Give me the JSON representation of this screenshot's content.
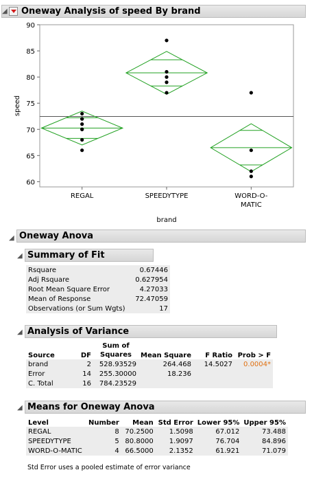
{
  "report_title": "Oneway Analysis of speed By brand",
  "chart_data": {
    "type": "scatter",
    "xlabel": "brand",
    "ylabel": "speed",
    "ylim": [
      59,
      90
    ],
    "yticks": [
      "90",
      "85",
      "80",
      "75",
      "70",
      "65",
      "60"
    ],
    "categories": [
      "REGAL",
      "SPEEDYTYPE",
      "WORD-O-MATIC"
    ],
    "category_labels": [
      [
        "REGAL"
      ],
      [
        "SPEEDYTYPE"
      ],
      [
        "WORD-O-",
        "MATIC"
      ]
    ],
    "grand_mean": 72.47059,
    "points": {
      "REGAL": [
        73,
        72,
        71,
        70,
        68,
        66,
        72,
        70
      ],
      "SPEEDYTYPE": [
        87,
        81,
        80,
        79,
        77
      ],
      "WORD-O-MATIC": [
        77,
        66,
        62,
        61
      ]
    },
    "means": [
      70.25,
      80.8,
      66.5
    ],
    "lower95": [
      67.012,
      76.704,
      61.921
    ],
    "upper95": [
      73.488,
      84.896,
      71.079
    ],
    "overlap_lower": [
      68.28,
      78.3,
      63.2
    ],
    "overlap_upper": [
      72.22,
      83.3,
      69.8
    ],
    "diamond_color": "#20a020"
  },
  "oneway_anova": {
    "title": "Oneway Anova",
    "summary_title": "Summary of Fit",
    "summary_rows": [
      {
        "label": "Rsquare",
        "value": "0.67446"
      },
      {
        "label": "Adj Rsquare",
        "value": "0.627954"
      },
      {
        "label": "Root Mean Square Error",
        "value": "4.27033"
      },
      {
        "label": "Mean of Response",
        "value": "72.47059"
      },
      {
        "label": "Observations (or Sum Wgts)",
        "value": "17"
      }
    ],
    "aov_title": "Analysis of Variance",
    "aov_headers": {
      "source": "Source",
      "df": "DF",
      "ss_top": "Sum of",
      "ss_bottom": "Squares",
      "ms": "Mean Square",
      "f": "F Ratio",
      "p": "Prob > F"
    },
    "aov_rows": [
      {
        "source": "brand",
        "df": "2",
        "ss": "528.93529",
        "ms": "264.468",
        "f": "14.5027",
        "p": "0.0004*"
      },
      {
        "source": "Error",
        "df": "14",
        "ss": "255.30000",
        "ms": "18.236",
        "f": "",
        "p": ""
      },
      {
        "source": "C. Total",
        "df": "16",
        "ss": "784.23529",
        "ms": "",
        "f": "",
        "p": ""
      }
    ],
    "p_color": "#e07010",
    "means_title": "Means for Oneway Anova",
    "means_headers": {
      "level": "Level",
      "number": "Number",
      "mean": "Mean",
      "se": "Std Error",
      "lower": "Lower 95%",
      "upper": "Upper 95%"
    },
    "means_rows": [
      {
        "level": "REGAL",
        "number": "8",
        "mean": "70.2500",
        "se": "1.5098",
        "lower": "67.012",
        "upper": "73.488"
      },
      {
        "level": "SPEEDYTYPE",
        "number": "5",
        "mean": "80.8000",
        "se": "1.9097",
        "lower": "76.704",
        "upper": "84.896"
      },
      {
        "level": "WORD-O-MATIC",
        "number": "4",
        "mean": "66.5000",
        "se": "2.1352",
        "lower": "61.921",
        "upper": "71.079"
      }
    ],
    "footnote": "Std Error uses a pooled estimate of error variance"
  }
}
